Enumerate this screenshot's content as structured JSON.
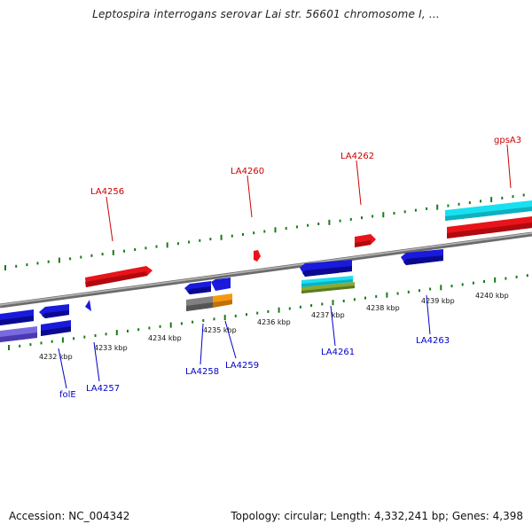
{
  "header": {
    "title": "Leptospira interrogans serovar Lai str. 56601 chromosome I, ..."
  },
  "footer": {
    "accession": "Accession: NC_004342",
    "summary": "Topology: circular; Length: 4,332,241 bp; Genes: 4,398"
  },
  "colors": {
    "backbone": "#8a8a8a",
    "forward_gene": "#e8141a",
    "reverse_gene": "#1a1adc",
    "cyan_feature": "#18e0f0",
    "orange_feature": "#f59a10",
    "olive_feature": "#7a9a2a",
    "gray_feature": "#808080",
    "lavender_feature": "#6e5ed0",
    "tick": "#1a7a1a",
    "forward_label": "#cc0000",
    "reverse_label": "#0000cc"
  },
  "scale_labels": [
    "4232 kbp",
    "4233 kbp",
    "4234 kbp",
    "4235 kbp",
    "4236 kbp",
    "4237 kbp",
    "4238 kbp",
    "4239 kbp",
    "4240 kbp"
  ],
  "forward_labels": [
    "LA4256",
    "LA4260",
    "LA4262",
    "gpsA3"
  ],
  "reverse_labels": [
    "folE",
    "LA4257",
    "LA4258",
    "LA4259",
    "LA4261",
    "LA4263"
  ]
}
